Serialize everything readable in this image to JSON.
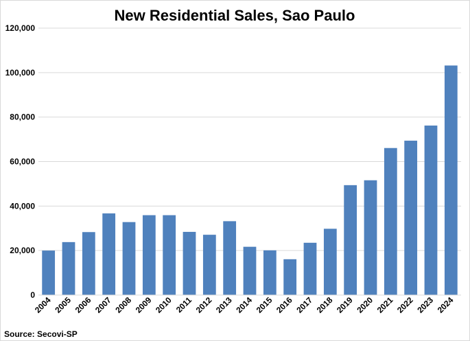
{
  "chart_data": {
    "type": "bar",
    "title": "New Residential Sales, Sao Paulo",
    "source": "Source: Secovi-SP",
    "categories": [
      "2004",
      "2005",
      "2006",
      "2007",
      "2008",
      "2009",
      "2010",
      "2011",
      "2012",
      "2013",
      "2014",
      "2015",
      "2016",
      "2017",
      "2018",
      "2019",
      "2020",
      "2021",
      "2022",
      "2023",
      "2024"
    ],
    "values": [
      20000,
      23800,
      28300,
      36700,
      32800,
      35900,
      35900,
      28400,
      27100,
      33200,
      21700,
      20100,
      16100,
      23500,
      29800,
      49400,
      51600,
      66100,
      69400,
      76200,
      103200
    ],
    "ylim": [
      0,
      120000
    ],
    "yticks": [
      0,
      20000,
      40000,
      60000,
      80000,
      100000,
      120000
    ],
    "ytick_labels": [
      "0",
      "20,000",
      "40,000",
      "60,000",
      "80,000",
      "100,000",
      "120,000"
    ],
    "bar_color": "#4f81bd",
    "grid_color": "#d9d9d9",
    "grid": true,
    "legend": "none"
  }
}
